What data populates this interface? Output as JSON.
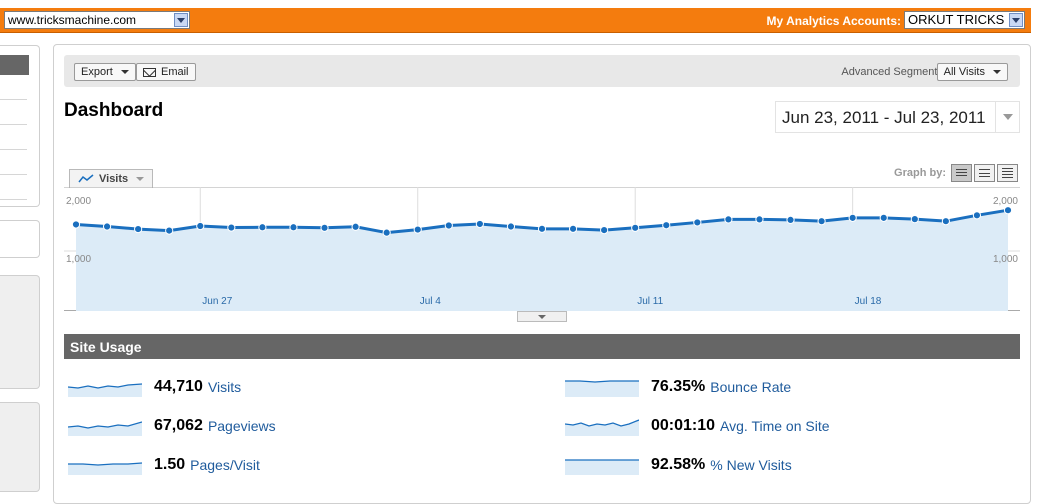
{
  "topbar": {
    "site_selector": "www.tricksmachine.com",
    "accounts_label": "My Analytics Accounts:",
    "account_selector": "ORKUT TRICKS",
    "colors": {
      "bar": "#f47c0e"
    }
  },
  "toolbar": {
    "export_label": "Export",
    "email_label": "Email",
    "segments_label": "Advanced Segments:",
    "segments_value": "All Visits"
  },
  "dashboard": {
    "title": "Dashboard",
    "date_range": "Jun 23, 2011 - Jul 23, 2011",
    "metric_tab": "Visits",
    "graph_by_label": "Graph by:"
  },
  "chart_data": {
    "type": "area",
    "x_ticks": [
      "Jun 27",
      "Jul 4",
      "Jul 11",
      "Jul 18"
    ],
    "x_tick_indices": [
      4,
      11,
      18,
      25
    ],
    "y_ticks_left": [
      "2,000",
      "1,000"
    ],
    "y_ticks_right": [
      "2,000",
      "1,000"
    ],
    "ylim": [
      1000,
      2000
    ],
    "series": [
      {
        "values": [
          1520,
          1480,
          1430,
          1400,
          1490,
          1460,
          1465,
          1465,
          1455,
          1475,
          1360,
          1420,
          1500,
          1530,
          1480,
          1435,
          1435,
          1410,
          1455,
          1505,
          1560,
          1620,
          1620,
          1610,
          1585,
          1650,
          1650,
          1625,
          1585,
          1700,
          1800
        ]
      }
    ],
    "colors": {
      "line": "#1a6fbf",
      "fill": "#dcebf7"
    }
  },
  "site_usage": {
    "title": "Site Usage",
    "stats": [
      {
        "value": "44,710",
        "label": "Visits"
      },
      {
        "value": "67,062",
        "label": "Pageviews"
      },
      {
        "value": "1.50",
        "label": "Pages/Visit"
      },
      {
        "value": "76.35%",
        "label": "Bounce Rate"
      },
      {
        "value": "00:01:10",
        "label": "Avg. Time on Site"
      },
      {
        "value": "92.58%",
        "label": "% New Visits"
      }
    ]
  }
}
